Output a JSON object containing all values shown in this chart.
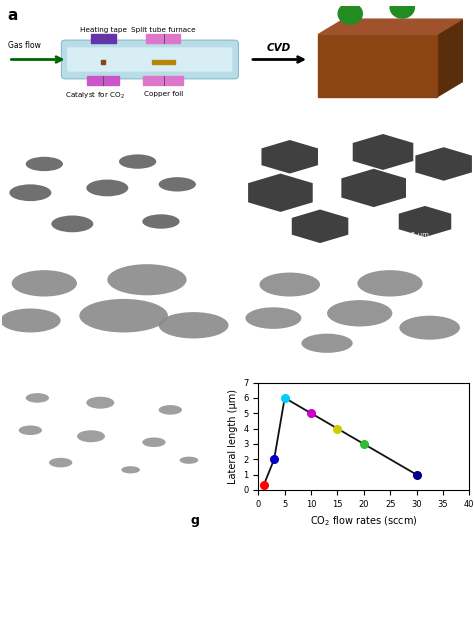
{
  "x_data": [
    1,
    3,
    5,
    10,
    15,
    20,
    30
  ],
  "y_data": [
    0.3,
    2.0,
    6.0,
    5.0,
    4.0,
    3.0,
    1.0
  ],
  "point_colors": [
    "#ff0000",
    "#0000cc",
    "#00ccff",
    "#cc00cc",
    "#cccc00",
    "#33bb33",
    "#000088"
  ],
  "xlabel": "CO$_2$ flow rates (sccm)",
  "ylabel": "Lateral length (μm)",
  "xlim": [
    0,
    40
  ],
  "ylim": [
    0,
    7
  ],
  "xticks": [
    0,
    5,
    10,
    15,
    20,
    25,
    30,
    35,
    40
  ],
  "yticks": [
    0,
    1,
    2,
    3,
    4,
    5,
    6,
    7
  ],
  "line_color": "#111111",
  "bg_b": "#9a9a9a",
  "bg_c": "#8a8a8a",
  "bg_d": "#aaaaaa",
  "bg_e": "#9e9e9e",
  "bg_f": "#b2b2b2",
  "dom_b": "#707070",
  "dom_c": "#404040",
  "dom_d": "#8a8a8a",
  "dom_e": "#888888",
  "dom_f": "#8e8e8e",
  "text_color_panels": "#ffffff",
  "label_a_bold": true,
  "panel_label_fontsize": 9,
  "panel_title_fontsize": 7,
  "scalebar_fontsize": 5,
  "graph_xlabel_fontsize": 7,
  "graph_ylabel_fontsize": 7,
  "graph_tick_fontsize": 6
}
